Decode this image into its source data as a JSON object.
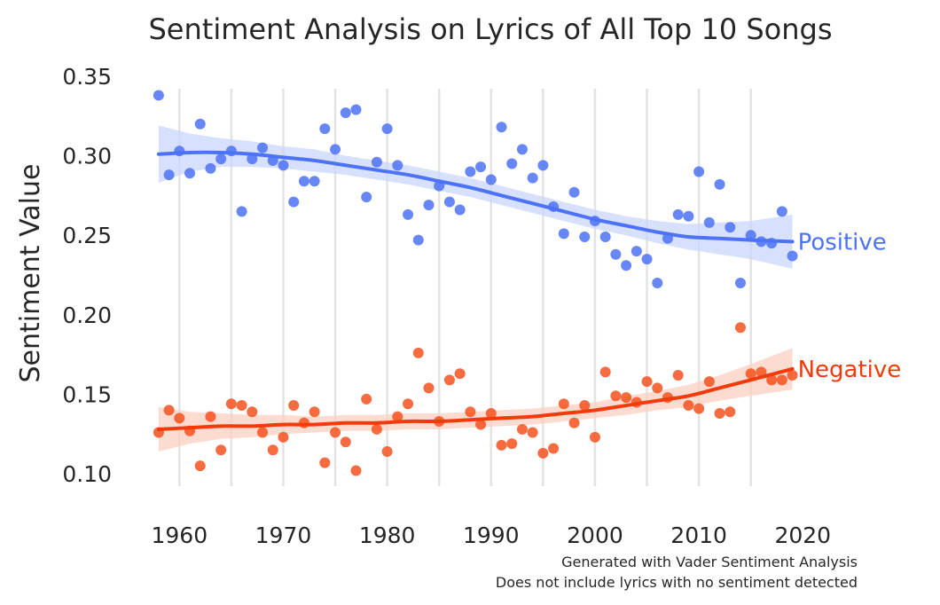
{
  "chart_data": {
    "type": "scatter",
    "title": "Sentiment Analysis on Lyrics of All Top 10 Songs",
    "xlabel": "",
    "ylabel": "Sentiment Value",
    "xlim": [
      1954,
      2021
    ],
    "ylim": [
      0.08,
      0.36
    ],
    "x_ticks": [
      1960,
      1970,
      1980,
      1990,
      2000,
      2010,
      2020
    ],
    "y_ticks": [
      0.1,
      0.15,
      0.2,
      0.25,
      0.3,
      0.35
    ],
    "y_tick_labels": [
      "0.10",
      "0.15",
      "0.20",
      "0.25",
      "0.30",
      "0.35"
    ],
    "grid": "vertical lines every 5 years",
    "footnotes": [
      "Generated with Vader Sentiment Analysis",
      "Does not include lyrics with no sentiment detected"
    ],
    "series": [
      {
        "name": "Positive",
        "color": "#4c72f5",
        "fit_color": "#4c72f5",
        "band_color": "#c9d5fb",
        "points": [
          [
            1958,
            0.338
          ],
          [
            1959,
            0.288
          ],
          [
            1960,
            0.303
          ],
          [
            1961,
            0.289
          ],
          [
            1962,
            0.32
          ],
          [
            1963,
            0.292
          ],
          [
            1964,
            0.298
          ],
          [
            1965,
            0.303
          ],
          [
            1966,
            0.265
          ],
          [
            1967,
            0.298
          ],
          [
            1968,
            0.305
          ],
          [
            1969,
            0.297
          ],
          [
            1970,
            0.294
          ],
          [
            1971,
            0.271
          ],
          [
            1972,
            0.284
          ],
          [
            1973,
            0.284
          ],
          [
            1974,
            0.317
          ],
          [
            1975,
            0.304
          ],
          [
            1976,
            0.327
          ],
          [
            1977,
            0.329
          ],
          [
            1978,
            0.274
          ],
          [
            1979,
            0.296
          ],
          [
            1980,
            0.317
          ],
          [
            1981,
            0.294
          ],
          [
            1982,
            0.263
          ],
          [
            1983,
            0.247
          ],
          [
            1984,
            0.269
          ],
          [
            1985,
            0.281
          ],
          [
            1986,
            0.271
          ],
          [
            1987,
            0.266
          ],
          [
            1988,
            0.29
          ],
          [
            1989,
            0.293
          ],
          [
            1990,
            0.285
          ],
          [
            1991,
            0.318
          ],
          [
            1992,
            0.295
          ],
          [
            1993,
            0.304
          ],
          [
            1994,
            0.286
          ],
          [
            1995,
            0.294
          ],
          [
            1996,
            0.268
          ],
          [
            1997,
            0.251
          ],
          [
            1998,
            0.277
          ],
          [
            1999,
            0.249
          ],
          [
            2000,
            0.259
          ],
          [
            2001,
            0.249
          ],
          [
            2002,
            0.238
          ],
          [
            2003,
            0.231
          ],
          [
            2004,
            0.24
          ],
          [
            2005,
            0.235
          ],
          [
            2006,
            0.22
          ],
          [
            2007,
            0.248
          ],
          [
            2008,
            0.263
          ],
          [
            2009,
            0.262
          ],
          [
            2010,
            0.29
          ],
          [
            2011,
            0.258
          ],
          [
            2012,
            0.282
          ],
          [
            2013,
            0.255
          ],
          [
            2014,
            0.22
          ],
          [
            2015,
            0.25
          ],
          [
            2016,
            0.246
          ],
          [
            2017,
            0.245
          ],
          [
            2018,
            0.265
          ],
          [
            2019,
            0.237
          ]
        ],
        "fit": [
          [
            1958,
            0.301
          ],
          [
            1961,
            0.302
          ],
          [
            1964,
            0.302
          ],
          [
            1967,
            0.301
          ],
          [
            1970,
            0.299
          ],
          [
            1973,
            0.297
          ],
          [
            1976,
            0.294
          ],
          [
            1979,
            0.291
          ],
          [
            1982,
            0.288
          ],
          [
            1985,
            0.284
          ],
          [
            1988,
            0.28
          ],
          [
            1991,
            0.275
          ],
          [
            1994,
            0.27
          ],
          [
            1997,
            0.265
          ],
          [
            2000,
            0.26
          ],
          [
            2003,
            0.256
          ],
          [
            2006,
            0.252
          ],
          [
            2009,
            0.249
          ],
          [
            2012,
            0.248
          ],
          [
            2015,
            0.247
          ],
          [
            2019,
            0.246
          ]
        ],
        "band": [
          [
            1958,
            0.283,
            0.319
          ],
          [
            1961,
            0.29,
            0.314
          ],
          [
            1964,
            0.293,
            0.311
          ],
          [
            1967,
            0.293,
            0.309
          ],
          [
            1970,
            0.292,
            0.306
          ],
          [
            1973,
            0.29,
            0.304
          ],
          [
            1976,
            0.288,
            0.3
          ],
          [
            1979,
            0.285,
            0.297
          ],
          [
            1982,
            0.282,
            0.294
          ],
          [
            1985,
            0.278,
            0.29
          ],
          [
            1988,
            0.274,
            0.286
          ],
          [
            1991,
            0.269,
            0.281
          ],
          [
            1994,
            0.264,
            0.276
          ],
          [
            1997,
            0.259,
            0.271
          ],
          [
            2000,
            0.254,
            0.266
          ],
          [
            2003,
            0.25,
            0.262
          ],
          [
            2006,
            0.245,
            0.259
          ],
          [
            2009,
            0.241,
            0.257
          ],
          [
            2012,
            0.238,
            0.258
          ],
          [
            2015,
            0.235,
            0.259
          ],
          [
            2019,
            0.229,
            0.263
          ]
        ]
      },
      {
        "name": "Negative",
        "color": "#f4511e",
        "fit_color": "#f23a0a",
        "band_color": "#fbcfc0",
        "points": [
          [
            1958,
            0.126
          ],
          [
            1959,
            0.14
          ],
          [
            1960,
            0.135
          ],
          [
            1961,
            0.127
          ],
          [
            1962,
            0.105
          ],
          [
            1963,
            0.136
          ],
          [
            1964,
            0.115
          ],
          [
            1965,
            0.144
          ],
          [
            1966,
            0.143
          ],
          [
            1967,
            0.139
          ],
          [
            1968,
            0.126
          ],
          [
            1969,
            0.115
          ],
          [
            1970,
            0.123
          ],
          [
            1971,
            0.143
          ],
          [
            1972,
            0.132
          ],
          [
            1973,
            0.139
          ],
          [
            1974,
            0.107
          ],
          [
            1975,
            0.126
          ],
          [
            1976,
            0.12
          ],
          [
            1977,
            0.102
          ],
          [
            1978,
            0.147
          ],
          [
            1979,
            0.128
          ],
          [
            1980,
            0.114
          ],
          [
            1981,
            0.136
          ],
          [
            1982,
            0.144
          ],
          [
            1983,
            0.176
          ],
          [
            1984,
            0.154
          ],
          [
            1985,
            0.133
          ],
          [
            1986,
            0.159
          ],
          [
            1987,
            0.163
          ],
          [
            1988,
            0.139
          ],
          [
            1989,
            0.131
          ],
          [
            1990,
            0.138
          ],
          [
            1991,
            0.118
          ],
          [
            1992,
            0.119
          ],
          [
            1993,
            0.128
          ],
          [
            1994,
            0.126
          ],
          [
            1995,
            0.113
          ],
          [
            1996,
            0.116
          ],
          [
            1997,
            0.144
          ],
          [
            1998,
            0.132
          ],
          [
            1999,
            0.143
          ],
          [
            2000,
            0.123
          ],
          [
            2001,
            0.164
          ],
          [
            2002,
            0.149
          ],
          [
            2003,
            0.148
          ],
          [
            2004,
            0.145
          ],
          [
            2005,
            0.158
          ],
          [
            2006,
            0.154
          ],
          [
            2007,
            0.148
          ],
          [
            2008,
            0.162
          ],
          [
            2009,
            0.143
          ],
          [
            2010,
            0.141
          ],
          [
            2011,
            0.158
          ],
          [
            2012,
            0.138
          ],
          [
            2013,
            0.139
          ],
          [
            2014,
            0.192
          ],
          [
            2015,
            0.163
          ],
          [
            2016,
            0.164
          ],
          [
            2017,
            0.159
          ],
          [
            2018,
            0.159
          ],
          [
            2019,
            0.162
          ]
        ],
        "fit": [
          [
            1958,
            0.128
          ],
          [
            1961,
            0.129
          ],
          [
            1964,
            0.13
          ],
          [
            1967,
            0.13
          ],
          [
            1970,
            0.131
          ],
          [
            1973,
            0.131
          ],
          [
            1976,
            0.132
          ],
          [
            1979,
            0.132
          ],
          [
            1982,
            0.133
          ],
          [
            1985,
            0.133
          ],
          [
            1988,
            0.134
          ],
          [
            1991,
            0.135
          ],
          [
            1994,
            0.136
          ],
          [
            1997,
            0.138
          ],
          [
            2000,
            0.14
          ],
          [
            2003,
            0.143
          ],
          [
            2006,
            0.146
          ],
          [
            2009,
            0.149
          ],
          [
            2012,
            0.154
          ],
          [
            2015,
            0.159
          ],
          [
            2019,
            0.166
          ]
        ],
        "band": [
          [
            1958,
            0.114,
            0.142
          ],
          [
            1961,
            0.119,
            0.139
          ],
          [
            1964,
            0.122,
            0.138
          ],
          [
            1967,
            0.123,
            0.137
          ],
          [
            1970,
            0.125,
            0.137
          ],
          [
            1973,
            0.126,
            0.136
          ],
          [
            1976,
            0.127,
            0.137
          ],
          [
            1979,
            0.127,
            0.137
          ],
          [
            1982,
            0.128,
            0.138
          ],
          [
            1985,
            0.128,
            0.138
          ],
          [
            1988,
            0.129,
            0.139
          ],
          [
            1991,
            0.13,
            0.14
          ],
          [
            1994,
            0.131,
            0.141
          ],
          [
            1997,
            0.133,
            0.143
          ],
          [
            2000,
            0.135,
            0.145
          ],
          [
            2003,
            0.137,
            0.149
          ],
          [
            2006,
            0.14,
            0.152
          ],
          [
            2009,
            0.142,
            0.156
          ],
          [
            2012,
            0.146,
            0.162
          ],
          [
            2015,
            0.149,
            0.169
          ],
          [
            2019,
            0.153,
            0.179
          ]
        ]
      }
    ]
  }
}
